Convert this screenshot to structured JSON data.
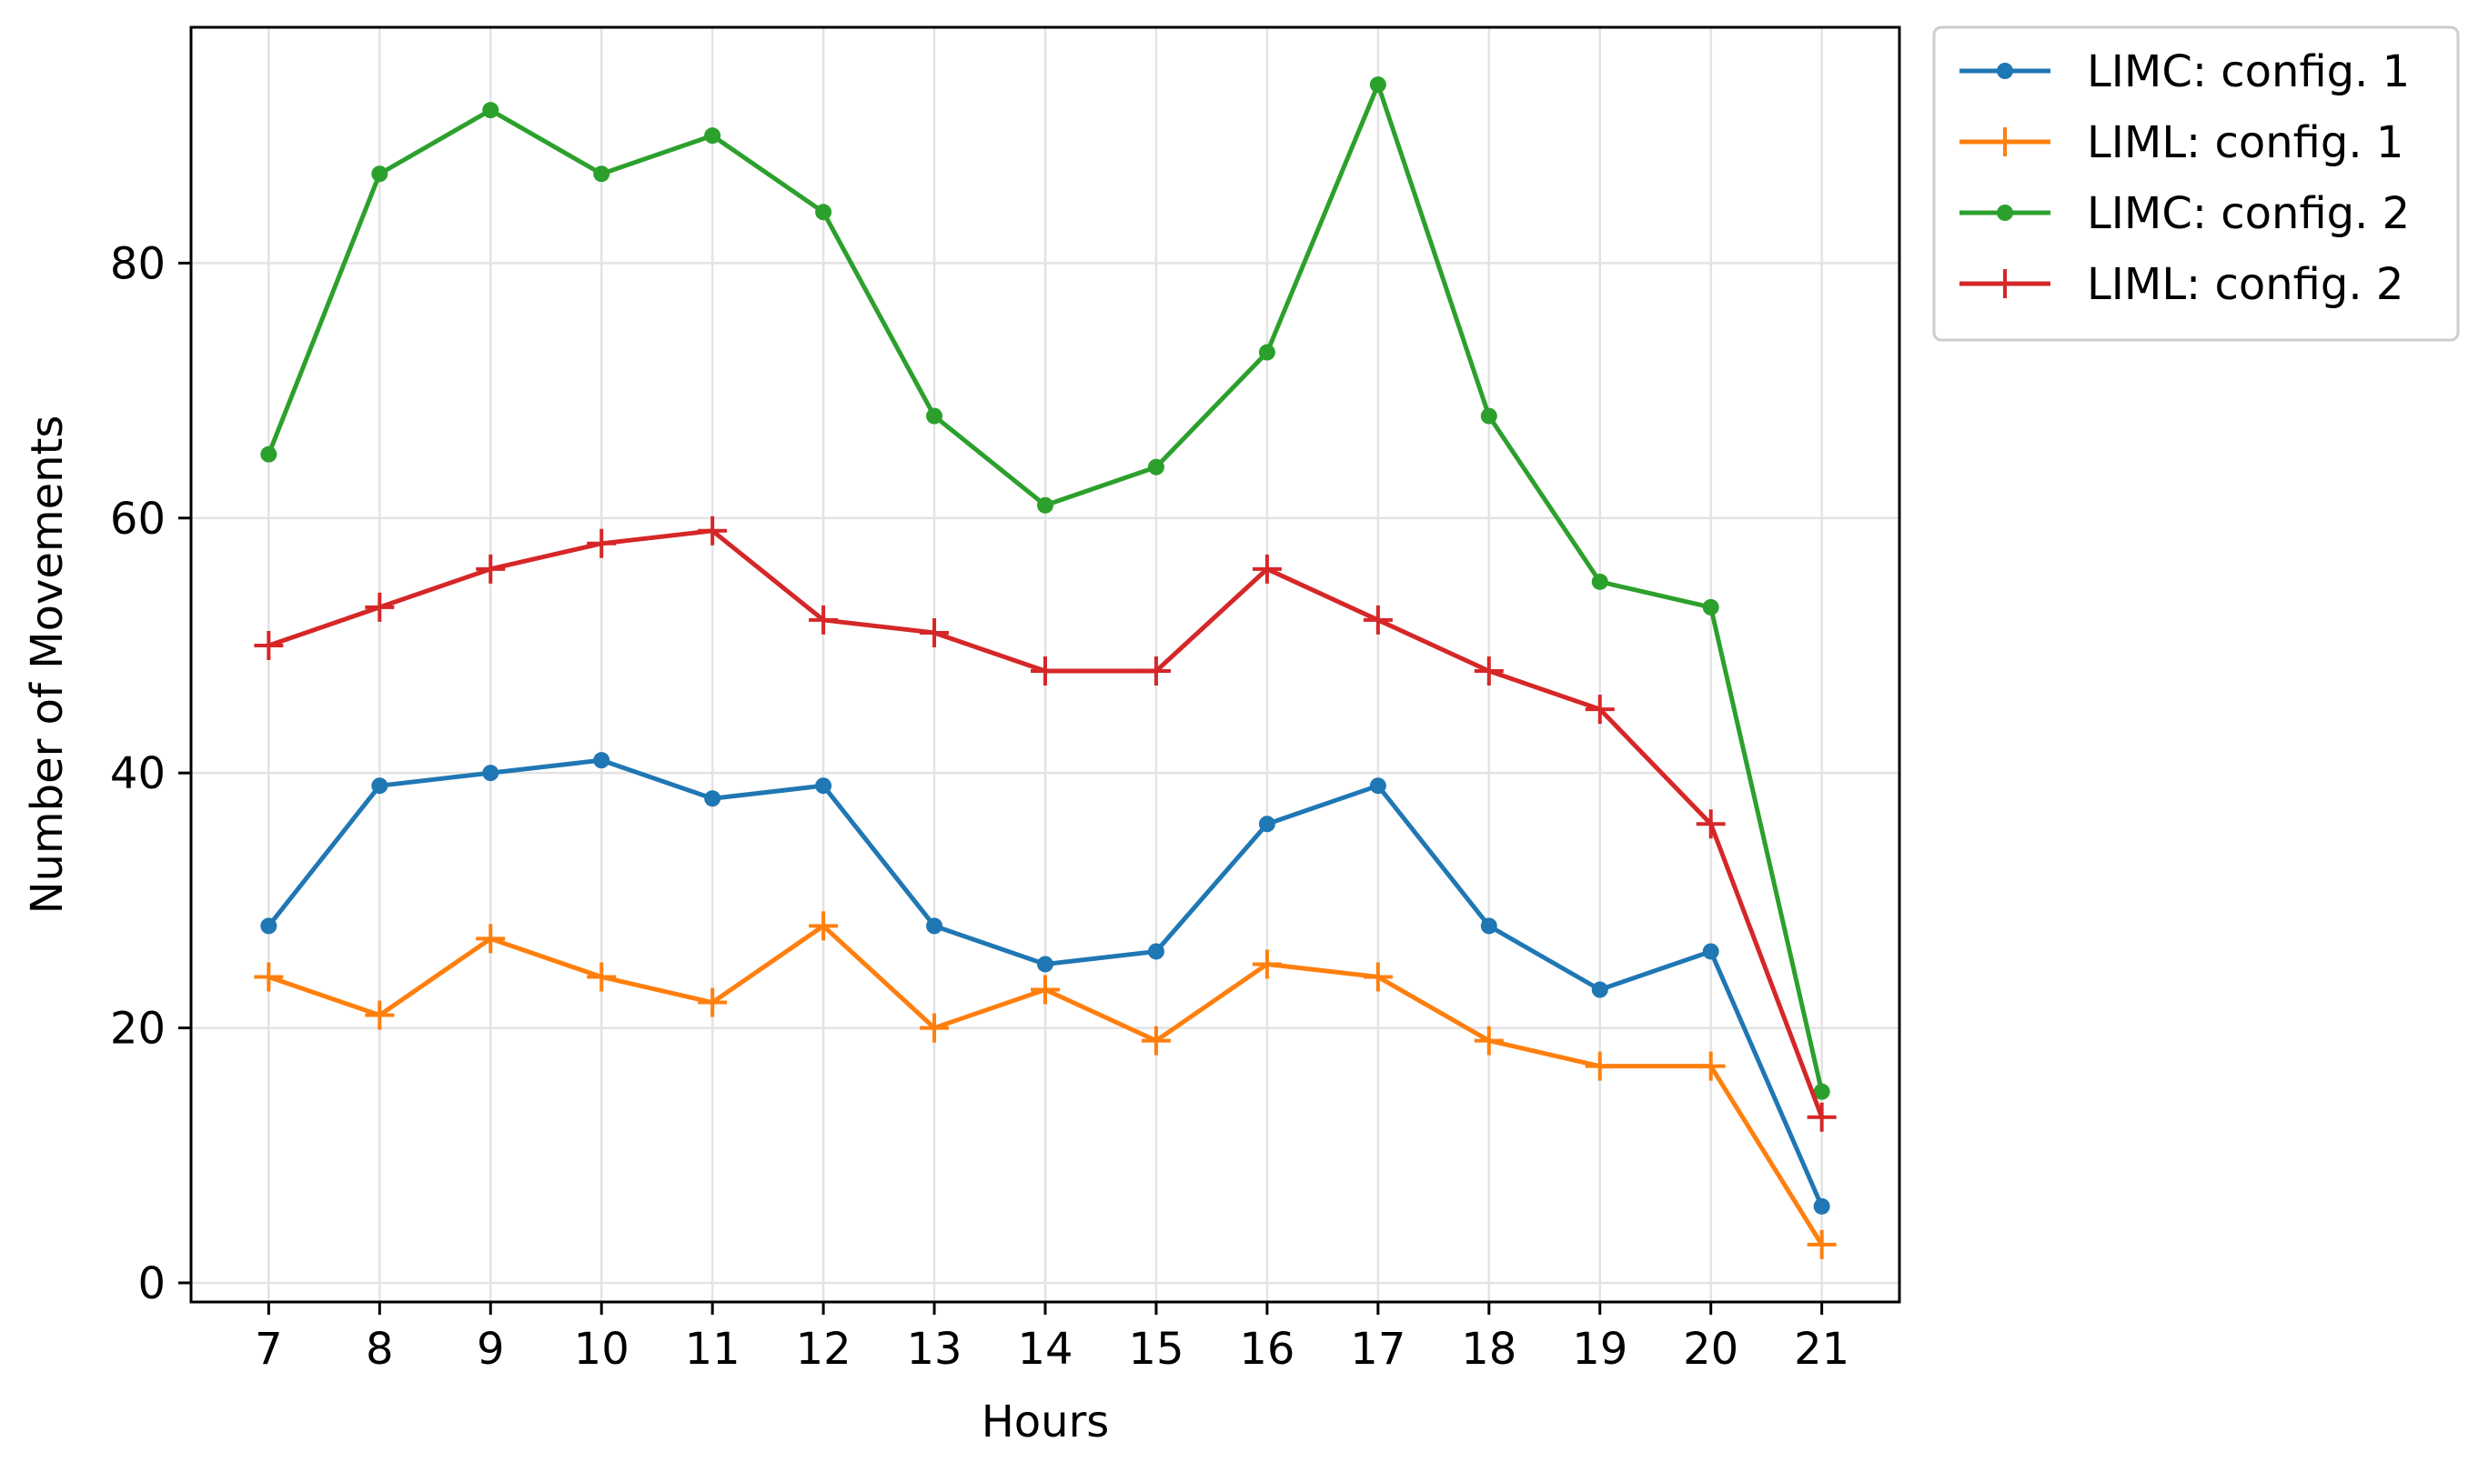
{
  "chart_data": {
    "type": "line",
    "title": "",
    "xlabel": "Hours",
    "ylabel": "Number of Movements",
    "x": [
      7,
      8,
      9,
      10,
      11,
      12,
      13,
      14,
      15,
      16,
      17,
      18,
      19,
      20,
      21
    ],
    "xlim": [
      6.3,
      21.7
    ],
    "ylim": [
      -1.5,
      98.5
    ],
    "yticks": [
      0,
      20,
      40,
      60,
      80
    ],
    "grid": true,
    "legend_placement": "outside upper-right",
    "series": [
      {
        "name": "LIMC: config. 1",
        "color": "#1f77b4",
        "marker": "dot",
        "values": [
          28,
          39,
          40,
          41,
          38,
          39,
          28,
          25,
          26,
          36,
          39,
          28,
          23,
          26,
          6
        ]
      },
      {
        "name": "LIML: config. 1",
        "color": "#ff7f0e",
        "marker": "plus",
        "values": [
          24,
          21,
          27,
          24,
          22,
          28,
          20,
          23,
          19,
          25,
          24,
          19,
          17,
          17,
          3
        ]
      },
      {
        "name": "LIMC: config. 2",
        "color": "#2ca02c",
        "marker": "dot",
        "values": [
          65,
          87,
          92,
          87,
          90,
          84,
          68,
          61,
          64,
          73,
          94,
          68,
          55,
          53,
          15
        ]
      },
      {
        "name": "LIML: config. 2",
        "color": "#d62728",
        "marker": "plus",
        "values": [
          50,
          53,
          56,
          58,
          59,
          52,
          51,
          48,
          48,
          56,
          52,
          48,
          45,
          36,
          13
        ]
      }
    ]
  }
}
